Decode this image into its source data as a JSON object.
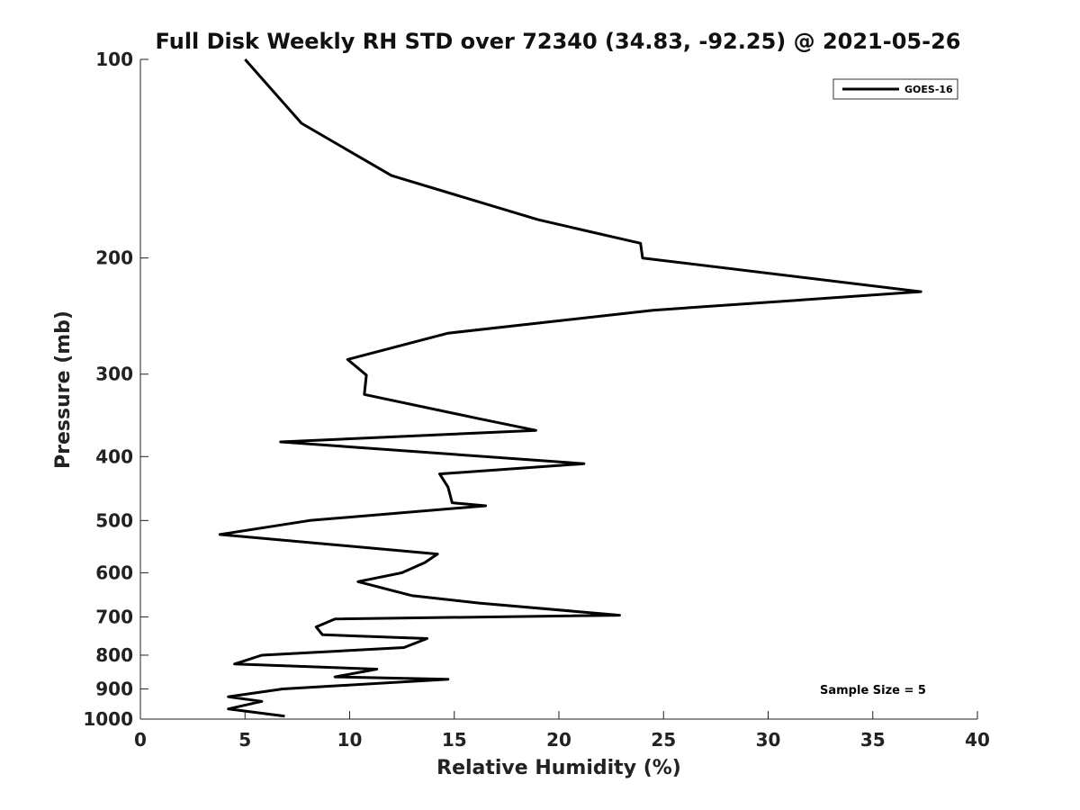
{
  "chart_data": {
    "type": "line",
    "title": "Full Disk Weekly RH STD over 72340 (34.83, -92.25) @ 2021-05-26",
    "xlabel": "Relative Humidity (%)",
    "ylabel": "Pressure (mb)",
    "xlim": [
      0,
      40
    ],
    "ylim": [
      100,
      1000
    ],
    "y_scale": "log",
    "y_inverted": true,
    "x_ticks": [
      "0",
      "5",
      "10",
      "15",
      "20",
      "25",
      "30",
      "35",
      "40"
    ],
    "y_ticks": [
      "100",
      "200",
      "300",
      "400",
      "500",
      "600",
      "700",
      "800",
      "900",
      "1000"
    ],
    "grid": false,
    "legend_position": "top-right",
    "annotation": "Sample Size = 5",
    "series": [
      {
        "name": "GOES-16",
        "color": "#000000",
        "points": [
          [
            5.0,
            100
          ],
          [
            7.7,
            125
          ],
          [
            12.0,
            150
          ],
          [
            19.0,
            175
          ],
          [
            23.9,
            190
          ],
          [
            24.0,
            200
          ],
          [
            37.3,
            225
          ],
          [
            24.5,
            240
          ],
          [
            14.7,
            260
          ],
          [
            9.9,
            285
          ],
          [
            10.8,
            301
          ],
          [
            10.7,
            322
          ],
          [
            16.1,
            350
          ],
          [
            18.9,
            365
          ],
          [
            6.7,
            380
          ],
          [
            21.2,
            410
          ],
          [
            14.3,
            425
          ],
          [
            14.7,
            445
          ],
          [
            14.9,
            470
          ],
          [
            16.5,
            475
          ],
          [
            8.1,
            500
          ],
          [
            3.8,
            525
          ],
          [
            14.2,
            562
          ],
          [
            13.6,
            579
          ],
          [
            12.5,
            600
          ],
          [
            10.4,
            619
          ],
          [
            13.0,
            650
          ],
          [
            16.2,
            667
          ],
          [
            22.9,
            696
          ],
          [
            9.3,
            705
          ],
          [
            8.4,
            725
          ],
          [
            8.7,
            745
          ],
          [
            13.7,
            755
          ],
          [
            12.6,
            779
          ],
          [
            5.8,
            800
          ],
          [
            4.5,
            825
          ],
          [
            11.3,
            840
          ],
          [
            9.3,
            863
          ],
          [
            14.7,
            870
          ],
          [
            6.8,
            900
          ],
          [
            4.2,
            925
          ],
          [
            5.8,
            940
          ],
          [
            4.2,
            965
          ],
          [
            6.9,
            990
          ]
        ]
      }
    ]
  }
}
